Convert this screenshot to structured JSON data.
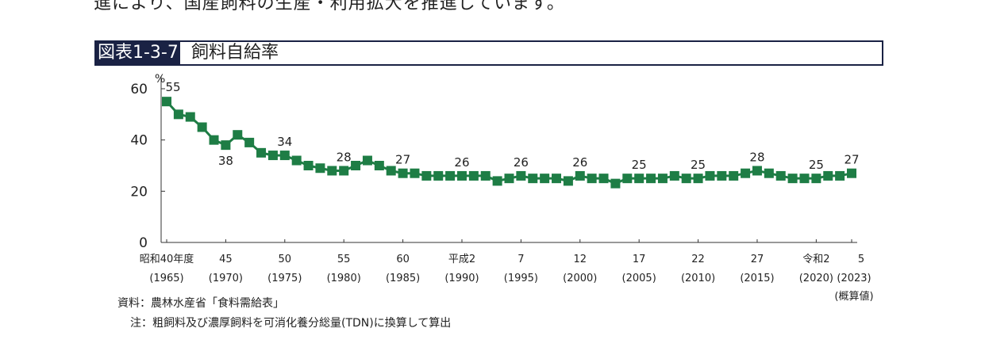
{
  "intro_text": "進により、国産飼料の生産・利用拡大を推進しています。",
  "figure": {
    "badge": "図表1-3-7",
    "title": "飼料自給率"
  },
  "source_note": "資料：農林水産省「食料需給表」",
  "footnote": "注：粗飼料及び濃厚飼料を可消化養分総量(TDN)に換算して算出",
  "colors": {
    "series": "#1e7d45",
    "header": "#1a2244",
    "axis": "#333333"
  },
  "chart_data": {
    "type": "line",
    "ylabel": "%",
    "ylim": [
      0,
      60
    ],
    "yticks": [
      0,
      20,
      40,
      60
    ],
    "grid": false,
    "x_ticks": [
      {
        "year": 1965,
        "label": "昭和40年度",
        "sub": "(1965)"
      },
      {
        "year": 1970,
        "label": "45",
        "sub": "(1970)"
      },
      {
        "year": 1975,
        "label": "50",
        "sub": "(1975)"
      },
      {
        "year": 1980,
        "label": "55",
        "sub": "(1980)"
      },
      {
        "year": 1985,
        "label": "60",
        "sub": "(1985)"
      },
      {
        "year": 1990,
        "label": "平成2",
        "sub": "(1990)"
      },
      {
        "year": 1995,
        "label": "7",
        "sub": "(1995)"
      },
      {
        "year": 2000,
        "label": "12",
        "sub": "(2000)"
      },
      {
        "year": 2005,
        "label": "17",
        "sub": "(2005)"
      },
      {
        "year": 2010,
        "label": "22",
        "sub": "(2010)"
      },
      {
        "year": 2015,
        "label": "27",
        "sub": "(2015)"
      },
      {
        "year": 2020,
        "label": "令和2",
        "sub": "(2020)"
      },
      {
        "year": 2023,
        "label": "5",
        "sub": "(2023)",
        "sub2": "(概算値)"
      }
    ],
    "x": [
      1965,
      1966,
      1967,
      1968,
      1969,
      1970,
      1971,
      1972,
      1973,
      1974,
      1975,
      1976,
      1977,
      1978,
      1979,
      1980,
      1981,
      1982,
      1983,
      1984,
      1985,
      1986,
      1987,
      1988,
      1989,
      1990,
      1991,
      1992,
      1993,
      1994,
      1995,
      1996,
      1997,
      1998,
      1999,
      2000,
      2001,
      2002,
      2003,
      2004,
      2005,
      2006,
      2007,
      2008,
      2009,
      2010,
      2011,
      2012,
      2013,
      2014,
      2015,
      2016,
      2017,
      2018,
      2019,
      2020,
      2021,
      2022,
      2023
    ],
    "values": [
      55,
      50,
      49,
      45,
      40,
      38,
      42,
      39,
      35,
      34,
      34,
      32,
      30,
      29,
      28,
      28,
      30,
      32,
      30,
      28,
      27,
      27,
      26,
      26,
      26,
      26,
      26,
      26,
      24,
      25,
      26,
      25,
      25,
      25,
      24,
      26,
      25,
      25,
      23,
      25,
      25,
      25,
      25,
      26,
      25,
      25,
      26,
      26,
      26,
      27,
      28,
      27,
      26,
      25,
      25,
      25,
      26,
      26,
      27
    ],
    "data_labels": [
      {
        "year": 1965,
        "text": "55",
        "pos": "above-right"
      },
      {
        "year": 1970,
        "text": "38",
        "pos": "below"
      },
      {
        "year": 1975,
        "text": "34",
        "pos": "above"
      },
      {
        "year": 1980,
        "text": "28",
        "pos": "above"
      },
      {
        "year": 1985,
        "text": "27",
        "pos": "above"
      },
      {
        "year": 1990,
        "text": "26",
        "pos": "above"
      },
      {
        "year": 1995,
        "text": "26",
        "pos": "above"
      },
      {
        "year": 2000,
        "text": "26",
        "pos": "above"
      },
      {
        "year": 2005,
        "text": "25",
        "pos": "above"
      },
      {
        "year": 2010,
        "text": "25",
        "pos": "above"
      },
      {
        "year": 2015,
        "text": "28",
        "pos": "above"
      },
      {
        "year": 2020,
        "text": "25",
        "pos": "above"
      },
      {
        "year": 2023,
        "text": "27",
        "pos": "above"
      }
    ]
  }
}
